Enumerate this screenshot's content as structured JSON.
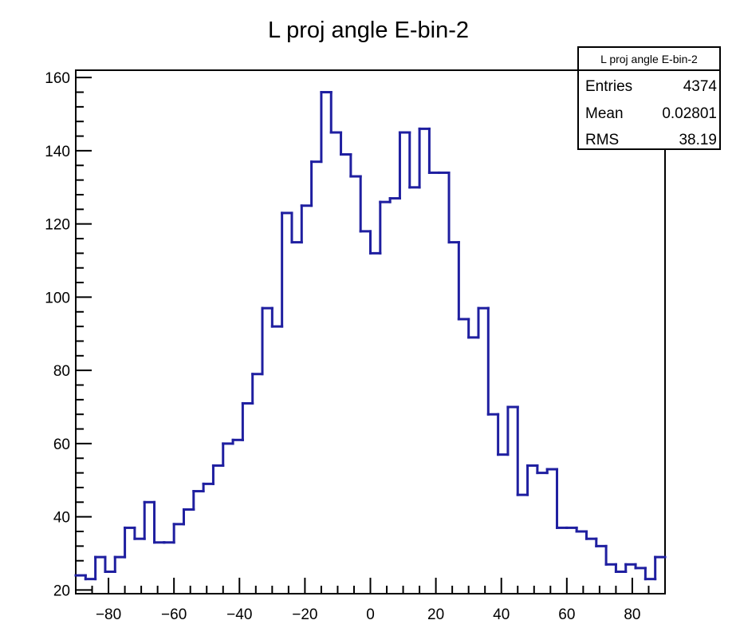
{
  "chart_data": {
    "type": "bar",
    "title": "L proj angle E-bin-2",
    "xlabel": "",
    "ylabel": "",
    "xlim": [
      -90,
      90
    ],
    "ylim": [
      19,
      162
    ],
    "x_ticks": [
      -80,
      -60,
      -40,
      -20,
      0,
      20,
      40,
      60,
      80
    ],
    "y_ticks": [
      20,
      40,
      60,
      80,
      100,
      120,
      140,
      160
    ],
    "grid": false,
    "legend": "none",
    "line_color": "#1f1fa0",
    "bin_edges": [
      -90,
      90
    ],
    "bin_count": 60,
    "values": [
      24,
      23,
      29,
      25,
      29,
      37,
      34,
      44,
      33,
      33,
      38,
      42,
      47,
      49,
      54,
      60,
      61,
      71,
      79,
      97,
      92,
      123,
      115,
      125,
      137,
      156,
      145,
      139,
      133,
      118,
      112,
      126,
      127,
      145,
      130,
      146,
      134,
      134,
      115,
      94,
      89,
      97,
      68,
      57,
      70,
      46,
      54,
      52,
      53,
      37,
      37,
      36,
      34,
      32,
      27,
      25,
      27,
      26,
      23,
      29
    ],
    "stats_box": {
      "title": "L proj angle E-bin-2",
      "rows": [
        {
          "label": "Entries",
          "value": "4374"
        },
        {
          "label": "Mean",
          "value": "0.02801"
        },
        {
          "label": "RMS",
          "value": "38.19"
        }
      ]
    }
  }
}
